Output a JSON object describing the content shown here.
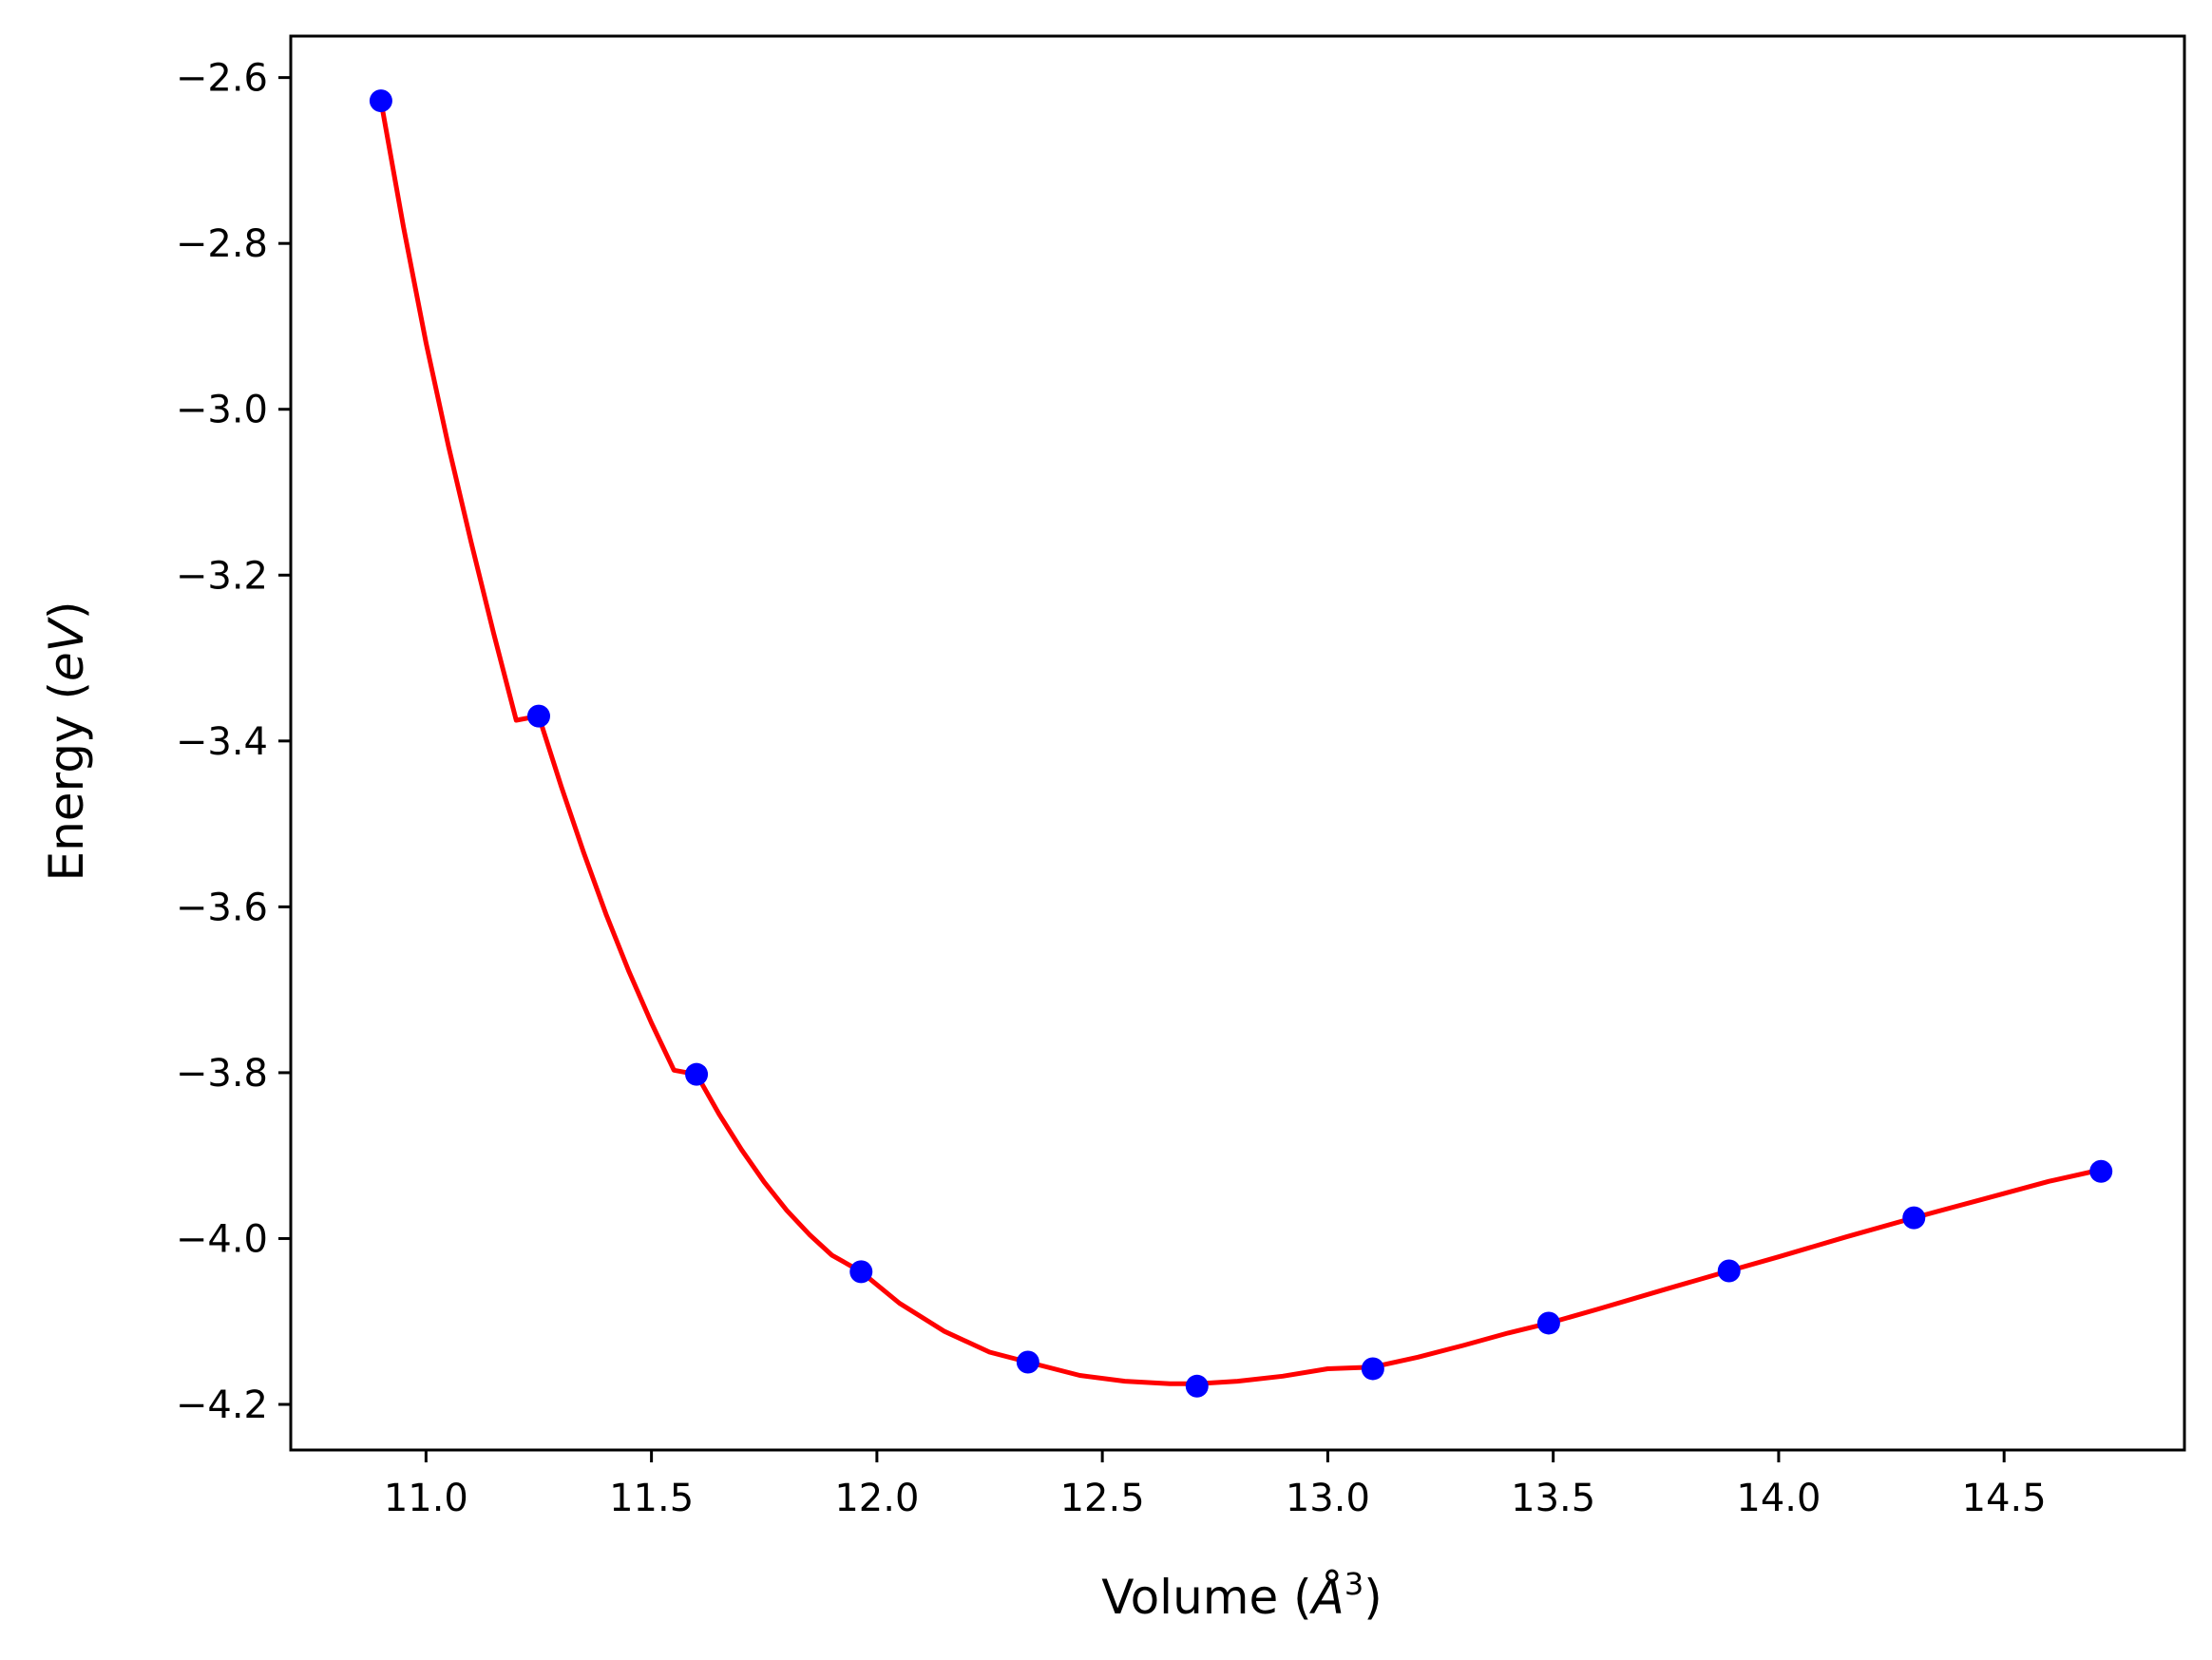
{
  "chart_data": {
    "type": "line",
    "title": "",
    "xlabel_prefix": "Volume (",
    "xlabel_symbol": "Å",
    "xlabel_exponent": "3",
    "xlabel_suffix": ")",
    "ylabel_prefix": "Energy (",
    "ylabel_unit": "eV",
    "ylabel_suffix": ")",
    "xlim": [
      10.7,
      14.9
    ],
    "ylim": [
      -4.255,
      -2.55
    ],
    "xticks": [
      11.0,
      11.5,
      12.0,
      12.5,
      13.0,
      13.5,
      14.0,
      14.5
    ],
    "xtick_labels": [
      "11.0",
      "11.5",
      "12.0",
      "12.5",
      "13.0",
      "13.5",
      "14.0",
      "14.5"
    ],
    "yticks": [
      -2.6,
      -2.8,
      -3.0,
      -3.2,
      -3.4,
      -3.6,
      -3.8,
      -4.0,
      -4.2
    ],
    "ytick_labels": [
      "−2.6",
      "−2.8",
      "−3.0",
      "−3.2",
      "−3.4",
      "−3.6",
      "−3.8",
      "−4.0",
      "−4.2"
    ],
    "grid": false,
    "series": [
      {
        "kind": "scatter",
        "color": "#0000ff",
        "x": [
          10.9,
          11.25,
          11.6,
          11.965,
          12.335,
          12.71,
          13.1,
          13.49,
          13.89,
          14.3,
          14.715
        ],
        "y": [
          -2.628,
          -3.37,
          -3.802,
          -4.04,
          -4.149,
          -4.178,
          -4.157,
          -4.102,
          -4.039,
          -3.975,
          -3.919
        ]
      },
      {
        "kind": "line",
        "color": "#ff0000",
        "x": [
          10.9,
          10.95,
          11.0,
          11.05,
          11.1,
          11.15,
          11.2,
          11.25,
          11.3,
          11.35,
          11.4,
          11.45,
          11.5,
          11.55,
          11.6,
          11.65,
          11.7,
          11.75,
          11.8,
          11.85,
          11.9,
          11.965,
          12.05,
          12.15,
          12.25,
          12.335,
          12.45,
          12.55,
          12.65,
          12.71,
          12.8,
          12.9,
          13.0,
          13.1,
          13.2,
          13.3,
          13.4,
          13.49,
          13.6,
          13.75,
          13.89,
          14.0,
          14.15,
          14.3,
          14.45,
          14.6,
          14.715
        ],
        "y": [
          -2.628,
          -2.78,
          -2.92,
          -3.045,
          -3.16,
          -3.27,
          -3.375,
          -3.37,
          -3.455,
          -3.535,
          -3.61,
          -3.678,
          -3.74,
          -3.797,
          -3.802,
          -3.85,
          -3.893,
          -3.932,
          -3.966,
          -3.995,
          -4.02,
          -4.04,
          -4.078,
          -4.112,
          -4.137,
          -4.149,
          -4.165,
          -4.172,
          -4.175,
          -4.175,
          -4.172,
          -4.166,
          -4.157,
          -4.155,
          -4.143,
          -4.129,
          -4.114,
          -4.102,
          -4.085,
          -4.061,
          -4.039,
          -4.022,
          -3.998,
          -3.975,
          -3.953,
          -3.931,
          -3.917
        ]
      }
    ]
  }
}
